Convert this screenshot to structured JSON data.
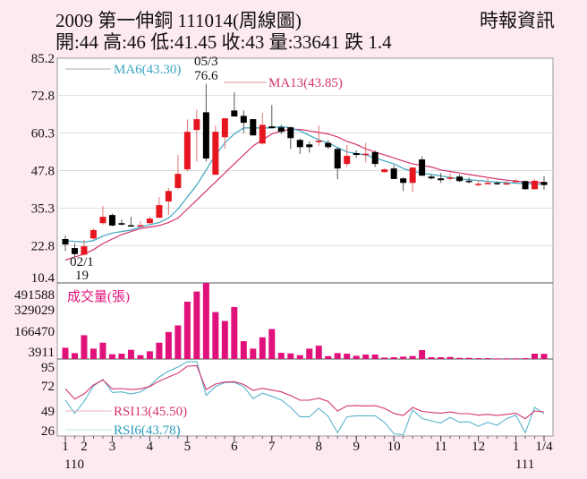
{
  "header": {
    "title": "2009  第一伸銅 111014(周線圖)",
    "quote": "開:44 高:46 低:41.45 收:43 量:33641 跌 1.4",
    "source": "時報資訊"
  },
  "colors": {
    "background": "#fde9f1",
    "up_candle": "#e5161f",
    "down_candle": "#000000",
    "ma6": "#3ba5c2",
    "ma13": "#d2336c",
    "volume": "#e0117a",
    "rsi13": "#d2336c",
    "rsi6": "#5ab4cc"
  },
  "chart_data": [
    {
      "type": "candlestick",
      "panel": "price",
      "yticks": [
        "85.2",
        "72.8",
        "60.3",
        "47.8",
        "35.3",
        "22.8",
        "10.4"
      ],
      "ylim": [
        10.4,
        85.2
      ],
      "grid": true,
      "legend": [
        {
          "name": "MA6(43.30)"
        },
        {
          "name": "MA13(43.85)"
        }
      ],
      "annotations": {
        "high": {
          "date": "05/3",
          "value": "76.6",
          "week": 16
        },
        "low": {
          "date": "02/1",
          "value": "19",
          "week": 2
        }
      },
      "ohlc": [
        [
          25,
          26.2,
          21.1,
          23.2
        ],
        [
          22,
          23.5,
          19,
          20
        ],
        [
          19.8,
          24.7,
          19.6,
          22.6
        ],
        [
          25.2,
          28.5,
          24.8,
          28
        ],
        [
          30.3,
          36,
          29.8,
          32.4
        ],
        [
          33,
          33.5,
          29.2,
          29.5
        ],
        [
          30.3,
          31.5,
          29.5,
          29.8
        ],
        [
          29.6,
          32.4,
          29,
          29.2
        ],
        [
          29.4,
          31,
          29.2,
          29.6
        ],
        [
          30.3,
          32.5,
          30,
          31.8
        ],
        [
          32.1,
          39,
          32,
          36.3
        ],
        [
          37.5,
          42,
          33,
          41
        ],
        [
          42,
          53,
          41.5,
          46.7
        ],
        [
          48.2,
          64.8,
          47.5,
          60.7
        ],
        [
          61.3,
          68,
          50.8,
          64.9
        ],
        [
          67.2,
          76.6,
          50.8,
          51.8
        ],
        [
          46.4,
          62.8,
          46.4,
          60.7
        ],
        [
          58.9,
          65.2,
          55,
          65.2
        ],
        [
          67.8,
          73.8,
          65.8,
          65.8
        ],
        [
          66,
          67.8,
          60.4,
          63.7
        ],
        [
          64.9,
          65,
          59.5,
          59.5
        ],
        [
          56.8,
          67,
          56.5,
          63
        ],
        [
          62.5,
          69.6,
          61.9,
          61.9
        ],
        [
          62.2,
          63,
          60,
          60.7
        ],
        [
          62.2,
          62.5,
          55,
          58.6
        ],
        [
          58,
          58.5,
          53.3,
          55.6
        ],
        [
          56.5,
          57.5,
          53.8,
          55.6
        ],
        [
          57.5,
          62.8,
          56,
          57.7
        ],
        [
          57,
          58,
          55,
          55.6
        ],
        [
          55,
          55.5,
          44.9,
          48.5
        ],
        [
          50,
          56.3,
          49,
          52.7
        ],
        [
          53.6,
          54.5,
          52,
          53
        ],
        [
          53.3,
          57,
          50.5,
          53.4
        ],
        [
          53.9,
          54.5,
          49,
          50
        ],
        [
          47.3,
          48.5,
          47,
          48.2
        ],
        [
          48.5,
          49.5,
          45,
          45
        ],
        [
          45.2,
          45.5,
          41,
          43.7
        ],
        [
          43.7,
          48.8,
          40.7,
          48.8
        ],
        [
          51.5,
          52.5,
          46,
          46.1
        ],
        [
          45.8,
          46.5,
          44.8,
          45.2
        ],
        [
          45.2,
          47,
          43.7,
          44.6
        ],
        [
          45.2,
          47,
          44.5,
          45.5
        ],
        [
          45.8,
          46.5,
          44,
          44.3
        ],
        [
          44.4,
          45.5,
          43.5,
          44.3
        ],
        [
          43.2,
          44.5,
          42.5,
          43.4
        ],
        [
          43.5,
          45.5,
          43.2,
          43.7
        ],
        [
          43.7,
          44.2,
          43,
          43.4
        ],
        [
          43.4,
          44.3,
          43,
          43.6
        ],
        [
          44.3,
          45,
          43.9,
          44.4
        ],
        [
          44.3,
          44.5,
          41.4,
          41.6
        ],
        [
          41.6,
          45,
          41.5,
          44.4
        ],
        [
          44,
          46,
          41.45,
          43
        ]
      ],
      "ma6": [
        24.5,
        24.2,
        24,
        24.5,
        26,
        27,
        27.5,
        28,
        29,
        29.8,
        30.5,
        32,
        35,
        39,
        43,
        48,
        53,
        57,
        60,
        62,
        62,
        62,
        62,
        62.5,
        62,
        61,
        59.5,
        58,
        57,
        55.5,
        54,
        53.5,
        53,
        52,
        51,
        50,
        48.5,
        47.5,
        47,
        46.5,
        46,
        45.5,
        45,
        44.8,
        44.5,
        44.2,
        44,
        43.8,
        43.6,
        43.5,
        43.3,
        43.3
      ],
      "ma13": [
        18,
        19,
        20,
        21.5,
        23.5,
        25,
        26.5,
        27.5,
        28.5,
        29,
        29.5,
        30.5,
        32,
        35,
        38,
        41,
        44,
        47,
        50,
        53,
        56,
        58,
        60,
        61,
        61.5,
        61.5,
        61,
        60.5,
        60,
        59,
        57.5,
        56.5,
        55,
        54,
        53,
        52,
        51,
        50,
        49.5,
        49,
        48,
        47.5,
        47,
        46.5,
        46,
        45.5,
        45,
        44.6,
        44.3,
        44,
        43.9,
        43.85
      ]
    },
    {
      "type": "bar",
      "panel": "volume",
      "title": "成交量(張)",
      "yticks": [
        "491588",
        "329029",
        "166470",
        "3911"
      ],
      "ylim": [
        0,
        491588
      ],
      "values": [
        72960,
        38400,
        153600,
        67200,
        105600,
        30720,
        34560,
        59520,
        24960,
        49920,
        105600,
        174720,
        216960,
        370560,
        435840,
        491588,
        303360,
        245760,
        336000,
        115200,
        67200,
        140160,
        193920,
        40320,
        36480,
        24960,
        67200,
        86400,
        19200,
        38400,
        34560,
        21120,
        28800,
        28800,
        9600,
        11520,
        15360,
        19200,
        57600,
        11520,
        11520,
        13440,
        7680,
        7680,
        5760,
        5760,
        3911,
        3911,
        3911,
        5760,
        34560,
        33641
      ]
    },
    {
      "type": "line",
      "panel": "rsi",
      "yticks": [
        "95",
        "72",
        "49",
        "26"
      ],
      "ylim": [
        19,
        100
      ],
      "legend": [
        {
          "name": "RSI13(45.50)"
        },
        {
          "name": "RSI6(43.78)"
        }
      ],
      "series": [
        {
          "name": "RSI13(45.50)",
          "values": [
            70.4,
            59.4,
            65,
            74.6,
            80,
            70.4,
            70.7,
            69.7,
            70.4,
            73,
            78.8,
            83.3,
            87.5,
            95,
            95.6,
            69.7,
            75.6,
            77.8,
            78.2,
            75.2,
            68.8,
            71,
            69.1,
            67.1,
            63.3,
            58.1,
            58.1,
            60.3,
            56.8,
            46.4,
            51.9,
            52.2,
            51.9,
            52.2,
            49.3,
            43.8,
            41.5,
            50.3,
            46.1,
            44.8,
            44.1,
            45.4,
            43.5,
            43.5,
            41.9,
            42.8,
            41.5,
            42.8,
            44.1,
            38,
            46.4,
            45.5
          ]
        },
        {
          "name": "RSI6(43.78)",
          "values": [
            58.4,
            43.8,
            56.8,
            73.6,
            80.7,
            66.5,
            67.1,
            64.9,
            67.1,
            73.6,
            83.3,
            89.8,
            94,
            100,
            100,
            63.3,
            73,
            77.2,
            77.5,
            73,
            60,
            65.8,
            62.3,
            58.4,
            50.3,
            40,
            40,
            49.3,
            40.6,
            22.8,
            40,
            41.2,
            41.2,
            41.2,
            34.1,
            21.8,
            20.5,
            47.7,
            38.3,
            35.7,
            33.4,
            39.6,
            34.1,
            34.7,
            29.9,
            34.1,
            30.9,
            38,
            41.9,
            22.8,
            50.3,
            43.78
          ]
        }
      ]
    }
  ],
  "xaxis": {
    "months": [
      {
        "label": "1",
        "week": 1
      },
      {
        "label": "2",
        "week": 3
      },
      {
        "label": "3",
        "week": 6
      },
      {
        "label": "4",
        "week": 10
      },
      {
        "label": "5",
        "week": 14
      },
      {
        "label": "6",
        "week": 19
      },
      {
        "label": "7",
        "week": 23
      },
      {
        "label": "8",
        "week": 28
      },
      {
        "label": "9",
        "week": 32
      },
      {
        "label": "10",
        "week": 36
      },
      {
        "label": "11",
        "week": 41
      },
      {
        "label": "12",
        "week": 45
      },
      {
        "label": "1",
        "week": 49
      },
      {
        "label": "1/4",
        "week": 52
      }
    ],
    "years": [
      {
        "label": "110",
        "week": 1
      },
      {
        "label": "111",
        "week": 49
      }
    ]
  }
}
